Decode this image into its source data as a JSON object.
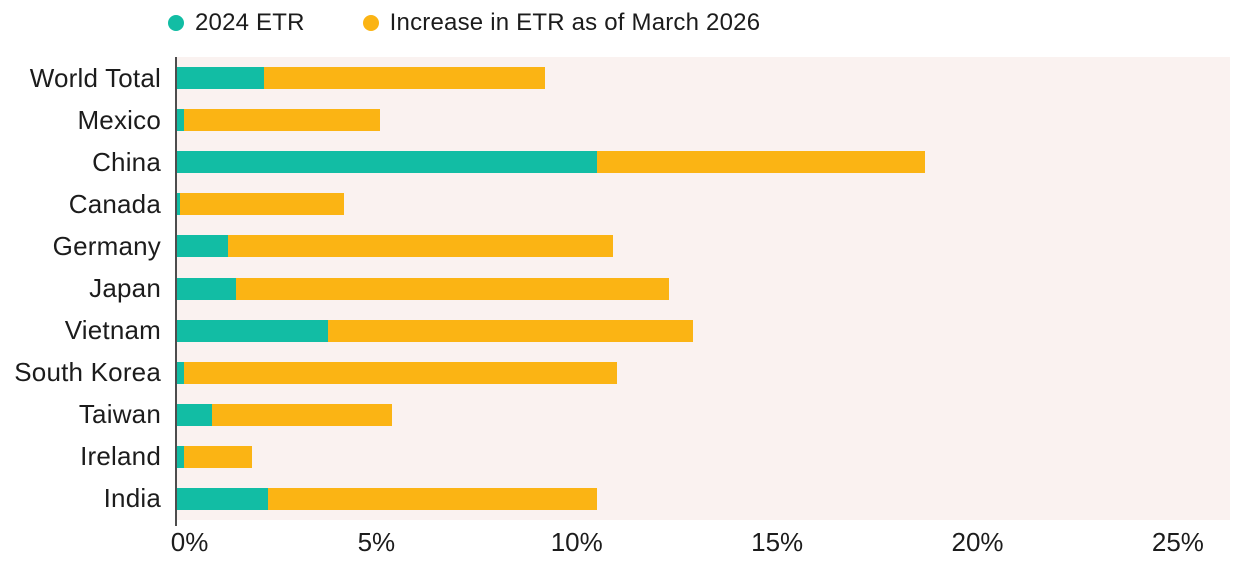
{
  "legend": {
    "items": [
      {
        "label": "2024 ETR",
        "color": "#12bda4"
      },
      {
        "label": "Increase in ETR as of March 2026",
        "color": "#fbb414"
      }
    ]
  },
  "chart_data": {
    "type": "bar",
    "orientation": "horizontal",
    "stacked": true,
    "title": "",
    "xlabel": "",
    "ylabel": "",
    "categories": [
      "World Total",
      "Mexico",
      "China",
      "Canada",
      "Germany",
      "Japan",
      "Vietnam",
      "South Korea",
      "Taiwan",
      "Ireland",
      "India"
    ],
    "series": [
      {
        "name": "2024 ETR",
        "color": "#12bda4",
        "values": [
          2.2,
          0.2,
          10.5,
          0.1,
          1.3,
          1.5,
          3.8,
          0.2,
          0.9,
          0.2,
          2.3
        ]
      },
      {
        "name": "Increase in ETR as of March 2026",
        "color": "#fbb414",
        "values": [
          7.0,
          4.9,
          8.2,
          4.1,
          9.6,
          10.8,
          9.1,
          10.8,
          4.5,
          1.7,
          8.2
        ]
      }
    ],
    "stack_totals": [
      9.2,
      5.1,
      18.7,
      4.2,
      10.9,
      12.3,
      12.9,
      11.0,
      5.4,
      1.9,
      10.5
    ],
    "x_ticks": [
      {
        "value": 0,
        "label": "0%"
      },
      {
        "value": 5,
        "label": "5%"
      },
      {
        "value": 10,
        "label": "10%"
      },
      {
        "value": 15,
        "label": "15%"
      },
      {
        "value": 20,
        "label": "20%"
      },
      {
        "value": 25,
        "label": "25%"
      }
    ],
    "xlim": [
      0,
      26.3
    ],
    "grid": false,
    "legend_position": "top",
    "plot_background": "#faf2f0",
    "axis_color": "#4d4d4d",
    "text_color": "#1c1c1c"
  }
}
